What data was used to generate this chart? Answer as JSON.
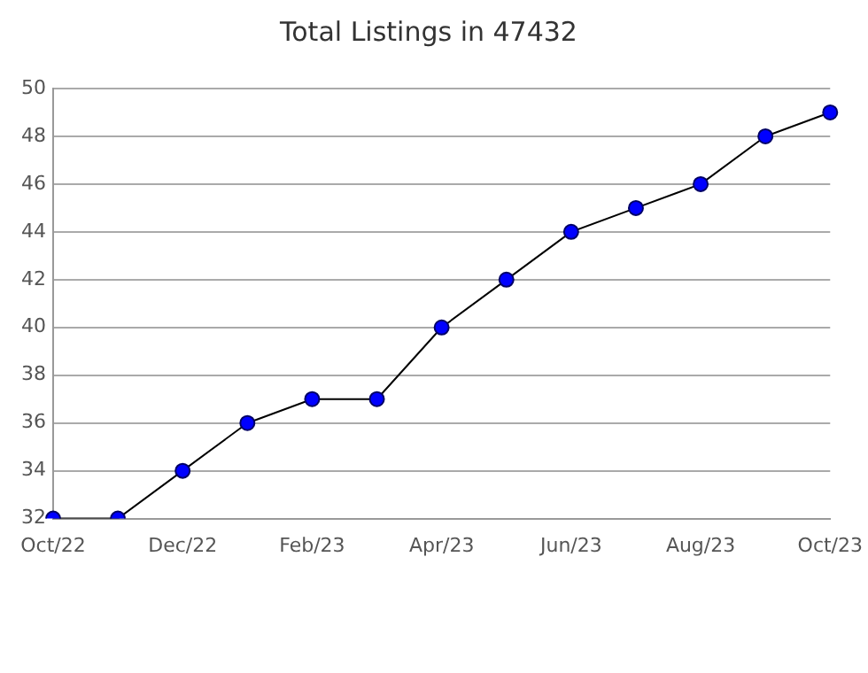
{
  "chart_data": {
    "type": "line",
    "title": "Total Listings in 47432",
    "categories": [
      "Oct/22",
      null,
      "Dec/22",
      null,
      "Feb/23",
      null,
      "Apr/23",
      null,
      "Jun/23",
      null,
      "Aug/23",
      null,
      "Oct/23"
    ],
    "series": [
      {
        "color": "#0000ff",
        "values": [
          32,
          32,
          34,
          36,
          37,
          37,
          40,
          42,
          44,
          45,
          46,
          48,
          49
        ]
      }
    ],
    "ylim": [
      32,
      50
    ],
    "yticks": [
      32,
      34,
      36,
      38,
      40,
      42,
      44,
      46,
      48,
      50
    ],
    "grid": "y",
    "marker": "circle",
    "line_style": "solid",
    "legend": false
  }
}
